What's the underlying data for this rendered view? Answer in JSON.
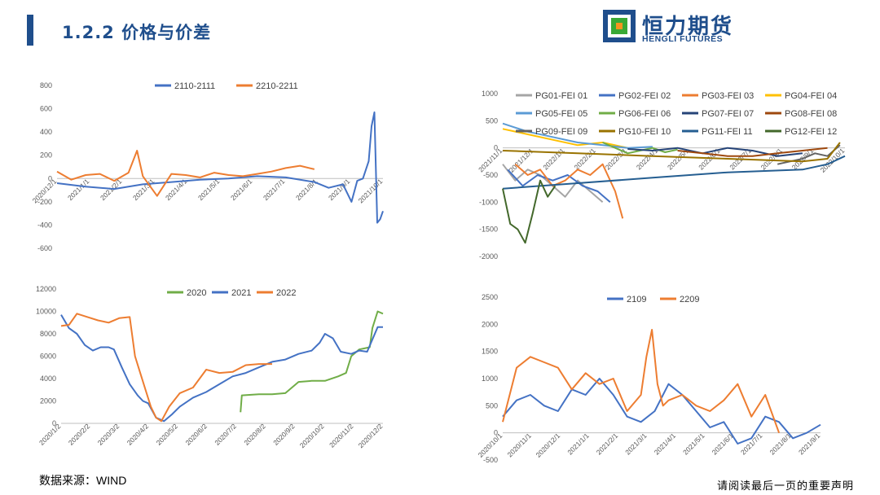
{
  "header": {
    "title": "1.2.2 价格与价差",
    "logo_cn": "恒力期货",
    "logo_en": "HENGLI FUTURES"
  },
  "footer": {
    "source": "数据来源：WIND",
    "disclaimer": "请阅读最后一页的重要声明"
  },
  "chart_data": [
    {
      "id": "c1",
      "type": "line",
      "ylim": [
        -600,
        800
      ],
      "yticks": [
        800,
        600,
        400,
        200,
        0,
        -200,
        -400,
        -600
      ],
      "xticks": [
        "2020/12/1",
        "2021/1/1",
        "2021/2/1",
        "2021/3/1",
        "2021/4/1",
        "2021/5/1",
        "2021/6/1",
        "2021/7/1",
        "2021/8/1",
        "2021/9/1",
        "2021/10/1"
      ],
      "legend_position": "top",
      "series": [
        {
          "name": "2110-2111",
          "color": "#4472c4",
          "x": [
            0,
            1,
            2,
            3,
            4,
            5,
            6,
            7,
            8,
            9,
            9.5,
            10,
            10.3,
            10.5,
            10.7,
            10.9,
            11,
            11.1,
            11.2,
            11.3,
            11.4
          ],
          "y": [
            -40,
            -70,
            -90,
            -50,
            -30,
            -10,
            0,
            20,
            10,
            -30,
            -80,
            -50,
            -200,
            -20,
            0,
            150,
            450,
            570,
            -380,
            -350,
            -280
          ]
        },
        {
          "name": "2210-2211",
          "color": "#ed7d31",
          "x": [
            0,
            0.5,
            1,
            1.5,
            2,
            2.5,
            2.8,
            3,
            3.5,
            4,
            4.5,
            5,
            5.5,
            6,
            6.5,
            7,
            7.5,
            8,
            8.5,
            9
          ],
          "y": [
            60,
            -10,
            30,
            40,
            -20,
            50,
            240,
            20,
            -150,
            40,
            30,
            10,
            50,
            30,
            20,
            40,
            60,
            90,
            110,
            80
          ]
        }
      ]
    },
    {
      "id": "c2",
      "type": "line",
      "ylim": [
        -2000,
        1000
      ],
      "yticks": [
        1000,
        500,
        0,
        -500,
        -1000,
        -1500,
        -2000
      ],
      "xticks": [
        "2021/11/1",
        "2021/12/1",
        "2022/1/1",
        "2022/2/1",
        "2022/3/1",
        "2022/4/1",
        "2022/5/1",
        "2022/6/1",
        "2022/7/1",
        "2022/8/1",
        "2022/9/1",
        "2022/10/1"
      ],
      "legend_position": "top",
      "series": [
        {
          "name": "PG01-FEI 01",
          "color": "#a5a5a5",
          "x": [
            0,
            0.5,
            1,
            1.5,
            2,
            2.5,
            3,
            3.5,
            4
          ],
          "y": [
            -300,
            -600,
            -400,
            -500,
            -700,
            -900,
            -600,
            -800,
            -1000
          ]
        },
        {
          "name": "PG02-FEI 02",
          "color": "#4472c4",
          "x": [
            0.2,
            0.8,
            1.4,
            2,
            2.6,
            3.2,
            3.8,
            4.3
          ],
          "y": [
            -400,
            -700,
            -500,
            -600,
            -500,
            -700,
            -800,
            -1000
          ]
        },
        {
          "name": "PG03-FEI 03",
          "color": "#ed7d31",
          "x": [
            0.5,
            1,
            1.5,
            2,
            2.5,
            3,
            3.5,
            4,
            4.5,
            4.8
          ],
          "y": [
            -300,
            -500,
            -400,
            -700,
            -600,
            -400,
            -500,
            -300,
            -800,
            -1300
          ]
        },
        {
          "name": "PG04-FEI 04",
          "color": "#ffc000",
          "x": [
            0,
            1,
            2,
            3,
            4,
            5,
            5.5
          ],
          "y": [
            350,
            250,
            150,
            50,
            100,
            0,
            -50
          ]
        },
        {
          "name": "PG05-FEI 05",
          "color": "#5b9bd5",
          "x": [
            0,
            1,
            2,
            3,
            4,
            5,
            6
          ],
          "y": [
            450,
            300,
            200,
            100,
            50,
            0,
            20
          ]
        },
        {
          "name": "PG06-FEI 06",
          "color": "#70ad47",
          "x": [
            4,
            4.5,
            5,
            5.5,
            6,
            6.5,
            7
          ],
          "y": [
            100,
            0,
            -100,
            -50,
            0,
            -80,
            -30
          ]
        },
        {
          "name": "PG07-FEI 07",
          "color": "#264478",
          "x": [
            5,
            6,
            7,
            8,
            9,
            10,
            11,
            12
          ],
          "y": [
            -20,
            -50,
            0,
            -100,
            0,
            -50,
            -150,
            -100
          ]
        },
        {
          "name": "PG08-FEI 08",
          "color": "#9e480e",
          "x": [
            7,
            8,
            9,
            10,
            11,
            12,
            13
          ],
          "y": [
            -50,
            -100,
            -150,
            -150,
            -100,
            -50,
            0
          ]
        },
        {
          "name": "PG09-FEI 09",
          "color": "#636363",
          "x": [
            11,
            11.5,
            12,
            12.5,
            13,
            13.5
          ],
          "y": [
            -300,
            -250,
            -200,
            -100,
            -150,
            50
          ]
        },
        {
          "name": "PG10-FEI 10",
          "color": "#997300",
          "x": [
            0,
            3,
            6,
            9,
            12,
            13,
            13.5
          ],
          "y": [
            -50,
            -100,
            -150,
            -200,
            -250,
            -200,
            100
          ]
        },
        {
          "name": "PG11-FEI 11",
          "color": "#255e91",
          "x": [
            0,
            3,
            6,
            9,
            12,
            13,
            13.7
          ],
          "y": [
            -750,
            -650,
            -550,
            -450,
            -400,
            -300,
            -150
          ]
        },
        {
          "name": "PG12-FEI 12",
          "color": "#43682b",
          "x": [
            0,
            0.3,
            0.6,
            0.9,
            1.2,
            1.5,
            1.8,
            2.1
          ],
          "y": [
            -750,
            -1400,
            -1500,
            -1750,
            -1200,
            -600,
            -900,
            -700
          ]
        }
      ]
    },
    {
      "id": "c3",
      "type": "line",
      "ylim": [
        0,
        12000
      ],
      "yticks": [
        12000,
        10000,
        8000,
        6000,
        4000,
        2000,
        0
      ],
      "xticks": [
        "2020/1/2",
        "2020/2/2",
        "2020/3/2",
        "2020/4/2",
        "2020/5/2",
        "2020/6/2",
        "2020/7/2",
        "2020/8/2",
        "2020/9/2",
        "2020/10/2",
        "2020/11/2",
        "2020/12/2"
      ],
      "legend_position": "top",
      "series": [
        {
          "name": "2020",
          "color": "#70ad47",
          "x": [
            6.8,
            6.85,
            7.5,
            8,
            8.5,
            9,
            9.5,
            10,
            10.5,
            10.8,
            11,
            11.3,
            11.5,
            11.7,
            11.8,
            12,
            12.2
          ],
          "y": [
            1000,
            2500,
            2600,
            2600,
            2700,
            3700,
            3800,
            3800,
            4200,
            4500,
            6000,
            6600,
            6700,
            6800,
            8500,
            10000,
            9800
          ]
        },
        {
          "name": "2021",
          "color": "#4472c4",
          "x": [
            0,
            0.3,
            0.6,
            0.9,
            1.2,
            1.5,
            1.8,
            2,
            2.3,
            2.6,
            2.9,
            3.1,
            3.3,
            3.6,
            3.9,
            4.2,
            4.5,
            5,
            5.5,
            6,
            6.5,
            7,
            7.5,
            8,
            8.5,
            9,
            9.5,
            9.8,
            10,
            10.3,
            10.6,
            11,
            11.3,
            11.6,
            12,
            12.2
          ],
          "y": [
            9700,
            8500,
            8000,
            7000,
            6500,
            6800,
            6800,
            6600,
            5000,
            3500,
            2500,
            2000,
            1800,
            500,
            200,
            800,
            1500,
            2300,
            2800,
            3500,
            4200,
            4500,
            5000,
            5500,
            5700,
            6200,
            6500,
            7200,
            8000,
            7600,
            6400,
            6200,
            6500,
            6400,
            8600,
            8600
          ]
        },
        {
          "name": "2022",
          "color": "#ed7d31",
          "x": [
            0,
            0.3,
            0.6,
            1,
            1.4,
            1.8,
            2.2,
            2.6,
            2.8,
            3,
            3.2,
            3.4,
            3.6,
            3.8,
            4.1,
            4.5,
            5,
            5.5,
            6,
            6.5,
            7,
            7.5,
            8
          ],
          "y": [
            8700,
            8800,
            9800,
            9500,
            9200,
            9000,
            9400,
            9500,
            6000,
            4500,
            3000,
            1500,
            500,
            200,
            1500,
            2700,
            3200,
            4800,
            4500,
            4600,
            5200,
            5300,
            5300
          ]
        }
      ]
    },
    {
      "id": "c4",
      "type": "line",
      "ylim": [
        -500,
        2500
      ],
      "yticks": [
        2500,
        2000,
        1500,
        1000,
        500,
        0,
        -500
      ],
      "xticks": [
        "2020/10/1",
        "2020/11/1",
        "2020/12/1",
        "2021/1/1",
        "2021/2/1",
        "2021/3/1",
        "2021/4/1",
        "2021/5/1",
        "2021/6/1",
        "2021/7/1",
        "2021/8/1",
        "2021/9/1"
      ],
      "legend_position": "top",
      "series": [
        {
          "name": "2109",
          "color": "#4472c4",
          "x": [
            0,
            0.5,
            1,
            1.5,
            2,
            2.5,
            3,
            3.5,
            4,
            4.5,
            5,
            5.5,
            6,
            6.5,
            7,
            7.5,
            8,
            8.5,
            9,
            9.5,
            10,
            10.5,
            11,
            11.5
          ],
          "y": [
            300,
            600,
            700,
            500,
            400,
            800,
            700,
            1000,
            700,
            300,
            200,
            400,
            900,
            700,
            400,
            100,
            200,
            -200,
            -100,
            300,
            200,
            -100,
            0,
            150
          ]
        },
        {
          "name": "2209",
          "color": "#ed7d31",
          "x": [
            0,
            0.5,
            1,
            1.5,
            2,
            2.5,
            3,
            3.5,
            4,
            4.5,
            5,
            5.2,
            5.4,
            5.6,
            5.8,
            6,
            6.5,
            7,
            7.5,
            8,
            8.5,
            9,
            9.5,
            10
          ],
          "y": [
            200,
            1200,
            1400,
            1300,
            1200,
            800,
            1100,
            900,
            1000,
            400,
            700,
            1400,
            1900,
            900,
            500,
            600,
            700,
            500,
            400,
            600,
            900,
            300,
            700,
            0
          ]
        }
      ]
    }
  ]
}
